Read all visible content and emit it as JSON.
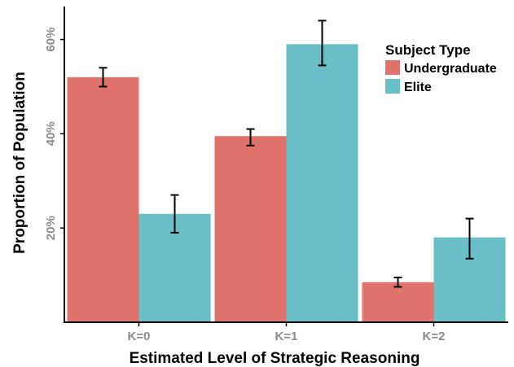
{
  "chart_data": {
    "type": "bar",
    "categories": [
      "K=0",
      "K=1",
      "K=2"
    ],
    "series": [
      {
        "name": "Undergraduate",
        "color": "#E0736B",
        "values": [
          0.52,
          0.395,
          0.085
        ],
        "error_low": [
          0.5,
          0.375,
          0.075
        ],
        "error_high": [
          0.54,
          0.41,
          0.095
        ]
      },
      {
        "name": "Elite",
        "color": "#6ABFC6",
        "values": [
          0.23,
          0.59,
          0.18
        ],
        "error_low": [
          0.19,
          0.545,
          0.135
        ],
        "error_high": [
          0.27,
          0.64,
          0.22
        ]
      }
    ],
    "xlabel": "Estimated Level of Strategic Reasoning",
    "ylabel": "Proportion of Population",
    "ylim": [
      0,
      0.67
    ],
    "y_ticks": [
      {
        "value": 0.2,
        "label": "20%"
      },
      {
        "value": 0.4,
        "label": "40%"
      },
      {
        "value": 0.6,
        "label": "60%"
      }
    ],
    "legend": {
      "title": "Subject Type",
      "position": "top-right"
    },
    "grid": false
  }
}
